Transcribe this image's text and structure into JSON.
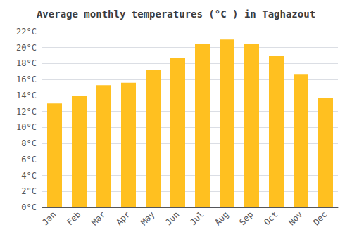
{
  "chart_data": {
    "type": "bar",
    "title": "Average monthly temperatures (°C ) in Taghazout",
    "categories": [
      "Jan",
      "Feb",
      "Mar",
      "Apr",
      "May",
      "Jun",
      "Jul",
      "Aug",
      "Sep",
      "Oct",
      "Nov",
      "Dec"
    ],
    "values": [
      13.0,
      14.0,
      15.3,
      15.6,
      17.2,
      18.7,
      20.5,
      21.0,
      20.5,
      19.0,
      16.7,
      13.7
    ],
    "color": "#FFC020",
    "ylim": [
      0,
      22
    ],
    "yticks": [
      {
        "value": 0,
        "label": "0°C"
      },
      {
        "value": 2,
        "label": "2°C"
      },
      {
        "value": 4,
        "label": "4°C"
      },
      {
        "value": 6,
        "label": "6°C"
      },
      {
        "value": 8,
        "label": "8°C"
      },
      {
        "value": 10,
        "label": "10°C"
      },
      {
        "value": 12,
        "label": "12°C"
      },
      {
        "value": 14,
        "label": "14°C"
      },
      {
        "value": 16,
        "label": "16°C"
      },
      {
        "value": 18,
        "label": "18°C"
      },
      {
        "value": 20,
        "label": "20°C"
      },
      {
        "value": 22,
        "label": "22°C"
      }
    ],
    "grid": true
  }
}
